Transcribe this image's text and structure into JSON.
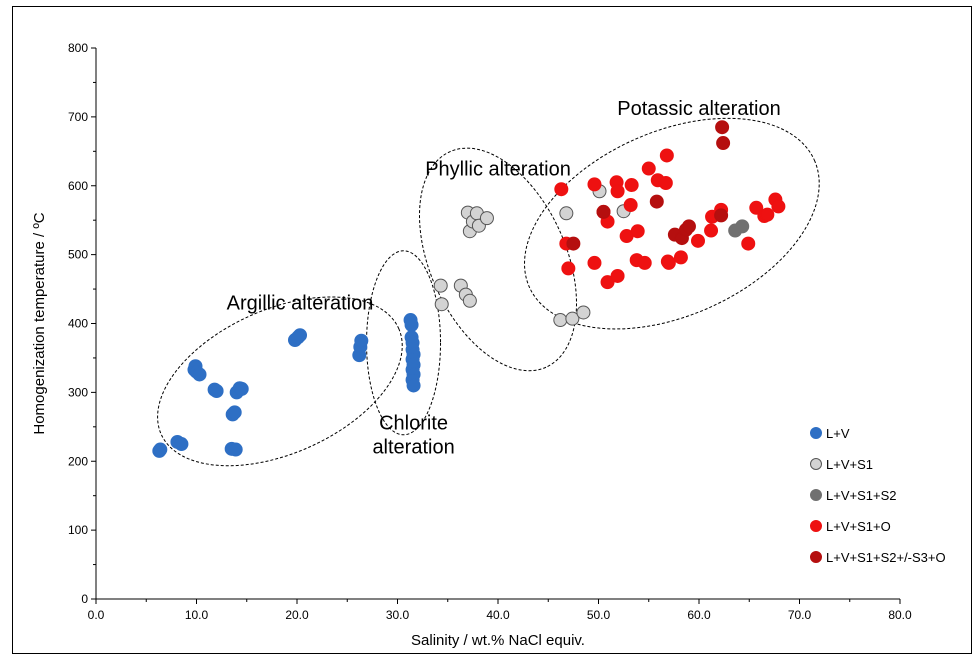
{
  "chart_data": {
    "type": "scatter",
    "title": "",
    "xlabel": "Salinity / wt.% NaCl equiv.",
    "ylabel": "Homogenization temperature / ºC",
    "xlim": [
      0,
      80
    ],
    "ylim": [
      0,
      800
    ],
    "xticks": [
      "0.0",
      "10.0",
      "20.0",
      "30.0",
      "40.0",
      "50.0",
      "60.0",
      "70.0",
      "80.0"
    ],
    "yticks": [
      "0",
      "100",
      "200",
      "300",
      "400",
      "500",
      "600",
      "700",
      "800"
    ],
    "grid": false,
    "legend_position": "bottom-right",
    "series": [
      {
        "name": "L+V",
        "color": "#2e6fc4",
        "points": [
          [
            6.3,
            215
          ],
          [
            6.4,
            217
          ],
          [
            8.1,
            228
          ],
          [
            8.5,
            225
          ],
          [
            9.8,
            333
          ],
          [
            9.9,
            338
          ],
          [
            10.0,
            330
          ],
          [
            10.3,
            326
          ],
          [
            11.8,
            304
          ],
          [
            12.0,
            302
          ],
          [
            13.5,
            218
          ],
          [
            13.6,
            268
          ],
          [
            13.8,
            271
          ],
          [
            13.9,
            217
          ],
          [
            14.0,
            300
          ],
          [
            14.3,
            306
          ],
          [
            14.5,
            305
          ],
          [
            19.8,
            376
          ],
          [
            20.1,
            380
          ],
          [
            20.3,
            383
          ],
          [
            26.2,
            354
          ],
          [
            26.3,
            366
          ],
          [
            26.4,
            375
          ],
          [
            31.3,
            405
          ],
          [
            31.4,
            398
          ],
          [
            31.4,
            380
          ],
          [
            31.5,
            372
          ],
          [
            31.5,
            362
          ],
          [
            31.6,
            355
          ],
          [
            31.5,
            348
          ],
          [
            31.6,
            340
          ],
          [
            31.5,
            333
          ],
          [
            31.6,
            326
          ],
          [
            31.5,
            318
          ],
          [
            31.6,
            310
          ]
        ]
      },
      {
        "name": "L+V+S1",
        "color": "#d3d3d3",
        "points": [
          [
            34.3,
            455
          ],
          [
            34.4,
            428
          ],
          [
            36.3,
            455
          ],
          [
            36.8,
            442
          ],
          [
            37.2,
            433
          ],
          [
            37.0,
            561
          ],
          [
            37.2,
            534
          ],
          [
            37.5,
            548
          ],
          [
            37.9,
            560
          ],
          [
            38.1,
            542
          ],
          [
            38.9,
            553
          ],
          [
            46.2,
            405
          ],
          [
            47.4,
            407
          ],
          [
            48.5,
            416
          ],
          [
            46.8,
            560
          ],
          [
            50.1,
            592
          ],
          [
            52.5,
            563
          ]
        ]
      },
      {
        "name": "L+V+S1+S2",
        "color": "#707070",
        "points": [
          [
            63.6,
            535
          ],
          [
            64.3,
            541
          ]
        ]
      },
      {
        "name": "L+V+S1+O",
        "color": "#ee1111",
        "points": [
          [
            46.3,
            595
          ],
          [
            46.8,
            516
          ],
          [
            47.0,
            480
          ],
          [
            49.6,
            602
          ],
          [
            49.6,
            488
          ],
          [
            50.5,
            562
          ],
          [
            50.9,
            548
          ],
          [
            50.9,
            460
          ],
          [
            51.8,
            605
          ],
          [
            51.9,
            592
          ],
          [
            51.9,
            469
          ],
          [
            52.8,
            527
          ],
          [
            53.2,
            572
          ],
          [
            53.3,
            601
          ],
          [
            53.8,
            492
          ],
          [
            53.9,
            534
          ],
          [
            54.6,
            488
          ],
          [
            55.0,
            625
          ],
          [
            55.9,
            608
          ],
          [
            56.7,
            604
          ],
          [
            56.8,
            644
          ],
          [
            56.9,
            490
          ],
          [
            57.0,
            488
          ],
          [
            58.2,
            496
          ],
          [
            59.9,
            520
          ],
          [
            61.2,
            535
          ],
          [
            61.3,
            555
          ],
          [
            62.2,
            565
          ],
          [
            64.9,
            516
          ],
          [
            65.7,
            568
          ],
          [
            66.5,
            556
          ],
          [
            66.8,
            558
          ],
          [
            67.6,
            580
          ],
          [
            67.9,
            570
          ]
        ]
      },
      {
        "name": "L+V+S1+S2+/-S3+O",
        "color": "#b50f0f",
        "points": [
          [
            47.5,
            516
          ],
          [
            50.5,
            562
          ],
          [
            55.8,
            577
          ],
          [
            57.6,
            529
          ],
          [
            58.3,
            524
          ],
          [
            58.7,
            536
          ],
          [
            59.0,
            541
          ],
          [
            62.2,
            557
          ],
          [
            62.3,
            685
          ],
          [
            62.4,
            662
          ]
        ]
      }
    ],
    "annotations": [
      {
        "text": "Argillic alteration",
        "lines": [
          "Argillic alteration"
        ],
        "x": 13.0,
        "y": 420,
        "anchor": "start"
      },
      {
        "text": "Chlorite alteration",
        "lines": [
          "Chlorite",
          "alteration"
        ],
        "x": 31.6,
        "y": 246,
        "anchor": "middle"
      },
      {
        "text": "Phyllic alteration",
        "lines": [
          "Phyllic alteration"
        ],
        "x": 40.0,
        "y": 615,
        "anchor": "middle"
      },
      {
        "text": "Potassic alteration",
        "lines": [
          "Potassic alteration"
        ],
        "x": 60.0,
        "y": 703,
        "anchor": "middle"
      }
    ],
    "regions": [
      {
        "name": "argillic-region",
        "cx": 18.3,
        "cy": 316,
        "rx": 130,
        "ry": 72,
        "angle": -24
      },
      {
        "name": "chlorite-region",
        "cx": 30.6,
        "cy": 372,
        "rx": 37,
        "ry": 92,
        "angle": 0
      },
      {
        "name": "phyllic-region",
        "cx": 40.0,
        "cy": 493,
        "rx": 118,
        "ry": 68,
        "angle": 66
      },
      {
        "name": "potassic-region",
        "cx": 57.3,
        "cy": 545,
        "rx": 156,
        "ry": 92,
        "angle": -24
      }
    ]
  }
}
